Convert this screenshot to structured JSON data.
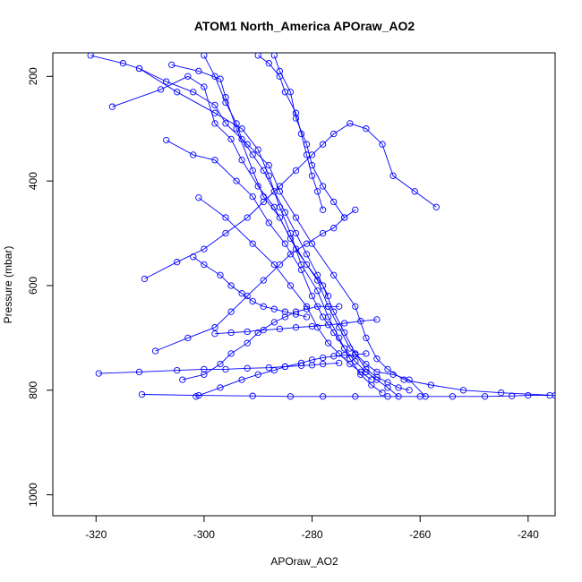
{
  "chart_data": {
    "type": "line",
    "title": "ATOM1 North_America APOraw_AO2",
    "xlabel": "APOraw_AO2",
    "ylabel": "Pressure (mbar)",
    "xlim": [
      -328,
      -235
    ],
    "ylim": [
      1040,
      155
    ],
    "y_reversed": true,
    "x_ticks": [
      -320,
      -300,
      -280,
      -260,
      -240
    ],
    "y_ticks": [
      200,
      400,
      600,
      800,
      1000
    ],
    "grid": false,
    "legend": "none",
    "marker": "open-circle",
    "color": "#0000ff",
    "series": [
      {
        "x": [
          -321,
          -315,
          -312,
          -307,
          -302,
          -298,
          -296,
          -292,
          -288,
          -286,
          -283,
          -280,
          -276,
          -272,
          -270,
          -268,
          -266,
          -263,
          -258,
          -252,
          -245,
          -235
        ],
        "y": [
          160,
          175,
          185,
          210,
          230,
          255,
          290,
          330,
          370,
          420,
          470,
          520,
          580,
          640,
          700,
          740,
          760,
          780,
          790,
          800,
          805,
          810
        ]
      },
      {
        "x": [
          -317,
          -308,
          -303,
          -300,
          -298,
          -295,
          -293,
          -290,
          -287,
          -284,
          -281,
          -278,
          -276,
          -274,
          -272,
          -270,
          -268,
          -266,
          -264,
          -262
        ],
        "y": [
          258,
          225,
          200,
          220,
          290,
          320,
          360,
          410,
          450,
          510,
          560,
          600,
          650,
          690,
          730,
          760,
          775,
          785,
          795,
          800
        ]
      },
      {
        "x": [
          -306,
          -301,
          -297,
          -296,
          -294,
          -291,
          -289,
          -286,
          -283,
          -279,
          -277,
          -275,
          -273,
          -270,
          -268,
          -265,
          -262,
          -259
        ],
        "y": [
          178,
          190,
          205,
          240,
          300,
          380,
          430,
          470,
          530,
          590,
          640,
          680,
          720,
          750,
          765,
          770,
          780,
          812
        ]
      },
      {
        "x": [
          -312,
          -305,
          -298,
          -293,
          -290,
          -288,
          -286,
          -284,
          -282,
          -279,
          -277,
          -275,
          -273,
          -271,
          -269,
          -267
        ],
        "y": [
          185,
          230,
          270,
          300,
          340,
          390,
          450,
          500,
          560,
          610,
          660,
          700,
          740,
          770,
          790,
          805
        ]
      },
      {
        "x": [
          -307,
          -302,
          -298,
          -294,
          -291,
          -288,
          -285,
          -282,
          -280,
          -278,
          -276,
          -274,
          -272,
          -270,
          -268,
          -266,
          -264
        ],
        "y": [
          322,
          350,
          360,
          400,
          430,
          480,
          520,
          570,
          620,
          660,
          690,
          720,
          745,
          765,
          780,
          795,
          812
        ]
      },
      {
        "x": [
          -311,
          -305,
          -300,
          -296,
          -292,
          -289,
          -286,
          -283,
          -280,
          -278,
          -276,
          -273,
          -270,
          -267,
          -265,
          -261,
          -257
        ],
        "y": [
          587,
          555,
          530,
          500,
          470,
          440,
          410,
          380,
          350,
          330,
          310,
          290,
          300,
          330,
          390,
          420,
          450
        ]
      },
      {
        "x": [
          -301,
          -296,
          -291,
          -287,
          -284,
          -281,
          -279,
          -277,
          -275,
          -273,
          -271,
          -269
        ],
        "y": [
          432,
          470,
          520,
          560,
          600,
          640,
          680,
          710,
          730,
          750,
          765,
          780
        ]
      },
      {
        "x": [
          -309,
          -303,
          -298,
          -295,
          -292,
          -289,
          -286,
          -284,
          -281,
          -278,
          -276,
          -274,
          -272
        ],
        "y": [
          725,
          700,
          680,
          650,
          620,
          590,
          560,
          540,
          520,
          500,
          490,
          470,
          455
        ]
      },
      {
        "x": [
          -319.5,
          -312,
          -305,
          -300,
          -296,
          -292,
          -288,
          -285,
          -282,
          -280,
          -278,
          -275
        ],
        "y": [
          768,
          765,
          762,
          760,
          760,
          758,
          757,
          755,
          753,
          752,
          750,
          748
        ]
      },
      {
        "x": [
          -311.5,
          -301,
          -291,
          -284,
          -278,
          -272,
          -266,
          -260,
          -254,
          -248,
          -243,
          -240,
          -236
        ],
        "y": [
          808,
          810,
          811,
          812,
          812,
          812,
          812,
          812,
          812,
          812,
          811,
          810,
          810
        ]
      },
      {
        "x": [
          -301.5,
          -297,
          -293,
          -290,
          -287,
          -285,
          -282,
          -280,
          -278,
          -276,
          -274,
          -272,
          -270
        ],
        "y": [
          812,
          795,
          780,
          770,
          762,
          755,
          748,
          742,
          738,
          735,
          733,
          732,
          730
        ]
      },
      {
        "x": [
          -304,
          -300,
          -297,
          -295,
          -292,
          -290,
          -287,
          -285,
          -283,
          -281,
          -279,
          -277,
          -275
        ],
        "y": [
          780,
          770,
          750,
          730,
          710,
          690,
          670,
          660,
          650,
          645,
          640,
          640,
          640
        ]
      },
      {
        "x": [
          -290,
          -288,
          -286,
          -285,
          -283,
          -282,
          -281,
          -280,
          -279,
          -278
        ],
        "y": [
          160,
          175,
          200,
          230,
          270,
          310,
          350,
          390,
          420,
          455
        ]
      },
      {
        "x": [
          -287,
          -286,
          -284,
          -283,
          -281,
          -280,
          -278,
          -276,
          -274
        ],
        "y": [
          160,
          190,
          230,
          280,
          330,
          370,
          410,
          440,
          470
        ]
      },
      {
        "x": [
          -300,
          -298,
          -296,
          -294,
          -293,
          -291,
          -289,
          -287,
          -285,
          -283,
          -281,
          -279,
          -277
        ],
        "y": [
          160,
          200,
          250,
          290,
          320,
          350,
          380,
          420,
          460,
          500,
          540,
          580,
          620
        ]
      },
      {
        "x": [
          -302,
          -300,
          -297,
          -295,
          -293,
          -291,
          -289,
          -287,
          -285,
          -283,
          -281
        ],
        "y": [
          545,
          560,
          580,
          600,
          615,
          630,
          640,
          645,
          650,
          655,
          660
        ]
      },
      {
        "x": [
          -298,
          -295,
          -292,
          -289,
          -286,
          -283,
          -280,
          -277,
          -274,
          -271,
          -268
        ],
        "y": [
          692,
          690,
          688,
          685,
          683,
          680,
          678,
          675,
          672,
          668,
          665
        ]
      }
    ]
  }
}
